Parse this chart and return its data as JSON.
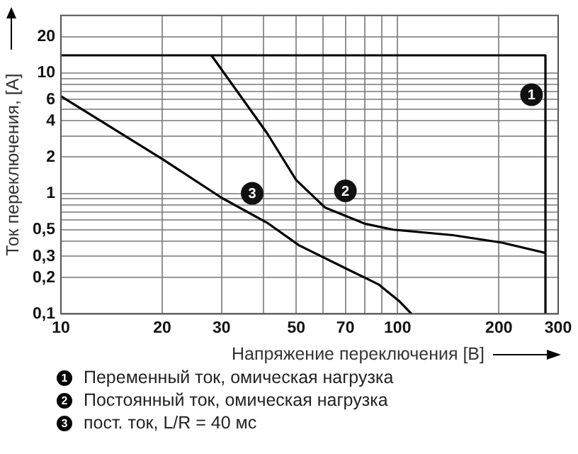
{
  "chart_data": {
    "type": "line",
    "xlabel": "Напряжение переключения [В]",
    "ylabel": "Ток переключения, [А]",
    "log": "xy",
    "grid": true,
    "legend": "bottom",
    "marker": "none",
    "line_style": "solid",
    "xlim": [
      10,
      300
    ],
    "ylim": [
      0.1,
      30
    ],
    "xticks": [
      10,
      20,
      30,
      {
        "value": 40,
        "label": null
      },
      50,
      {
        "value": 60,
        "label": null
      },
      70,
      {
        "value": 80,
        "label": null
      },
      {
        "value": 90,
        "label": null
      },
      100,
      200,
      300
    ],
    "yticks": [
      {
        "value": 0.1,
        "label": "0,1"
      },
      {
        "value": 0.2,
        "label": "0,2"
      },
      {
        "value": 0.3,
        "label": "0,3"
      },
      {
        "value": 0.4,
        "label": null
      },
      {
        "value": 0.5,
        "label": "0,5"
      },
      {
        "value": 0.6,
        "label": null
      },
      {
        "value": 0.7,
        "label": null
      },
      {
        "value": 0.8,
        "label": null
      },
      {
        "value": 0.9,
        "label": null
      },
      1,
      2,
      {
        "value": 3,
        "label": null
      },
      4,
      {
        "value": 5,
        "label": null
      },
      6,
      {
        "value": 7,
        "label": null
      },
      {
        "value": 8,
        "label": null
      },
      {
        "value": 9,
        "label": null
      },
      10,
      20
    ],
    "series": [
      {
        "name": "Переменный ток, омическая нагрузка",
        "color": "#000000",
        "x": [
          10,
          275,
          275
        ],
        "values": [
          14,
          14,
          0.1
        ]
      },
      {
        "name": "Постоянный ток, омическая нагрузка",
        "color": "#000000",
        "x": [
          28,
          41,
          50,
          61,
          80,
          97,
          146,
          204,
          275
        ],
        "values": [
          14,
          3.15,
          1.29,
          0.76,
          0.56,
          0.5,
          0.45,
          0.39,
          0.32
        ]
      },
      {
        "name": "пост. ток, L/R = 40 мс",
        "color": "#000000",
        "x": [
          10,
          20,
          30,
          41,
          51,
          72,
          88,
          101,
          110
        ],
        "values": [
          6.4,
          1.93,
          0.92,
          0.57,
          0.37,
          0.23,
          0.175,
          0.128,
          0.1
        ]
      }
    ],
    "annotations": [
      {
        "text": "1",
        "x": 250,
        "y": 6.6
      },
      {
        "text": "2",
        "x": 70,
        "y": 1.05
      },
      {
        "text": "3",
        "x": 37,
        "y": 1.0
      }
    ]
  }
}
